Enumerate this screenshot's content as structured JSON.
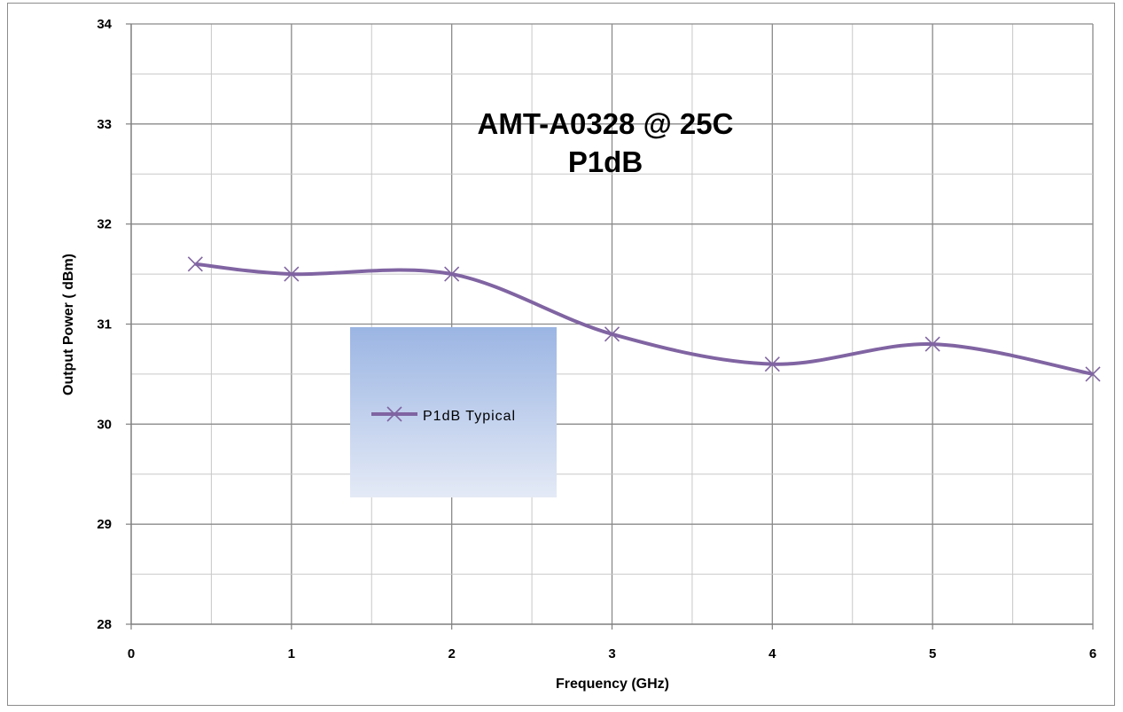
{
  "chart_data": {
    "type": "line",
    "title": "AMT-A0328 @ 25C",
    "subtitle": "P1dB",
    "xlabel": "Frequency (GHz)",
    "ylabel": "Output Power ( dBm)",
    "xlim": [
      0,
      6
    ],
    "ylim": [
      28,
      34
    ],
    "x_ticks": [
      0,
      1,
      2,
      3,
      4,
      5,
      6
    ],
    "y_ticks": [
      28,
      29,
      30,
      31,
      32,
      33,
      34
    ],
    "grid": true,
    "minor_grid": true,
    "smooth": true,
    "legend_position": "center-left",
    "series": [
      {
        "name": "P1dB Typical",
        "color": "#8064a2",
        "marker": "x",
        "x": [
          0.4,
          1,
          2,
          3,
          4,
          5,
          6
        ],
        "y": [
          31.6,
          31.5,
          31.5,
          30.9,
          30.6,
          30.8,
          30.5
        ]
      }
    ]
  }
}
